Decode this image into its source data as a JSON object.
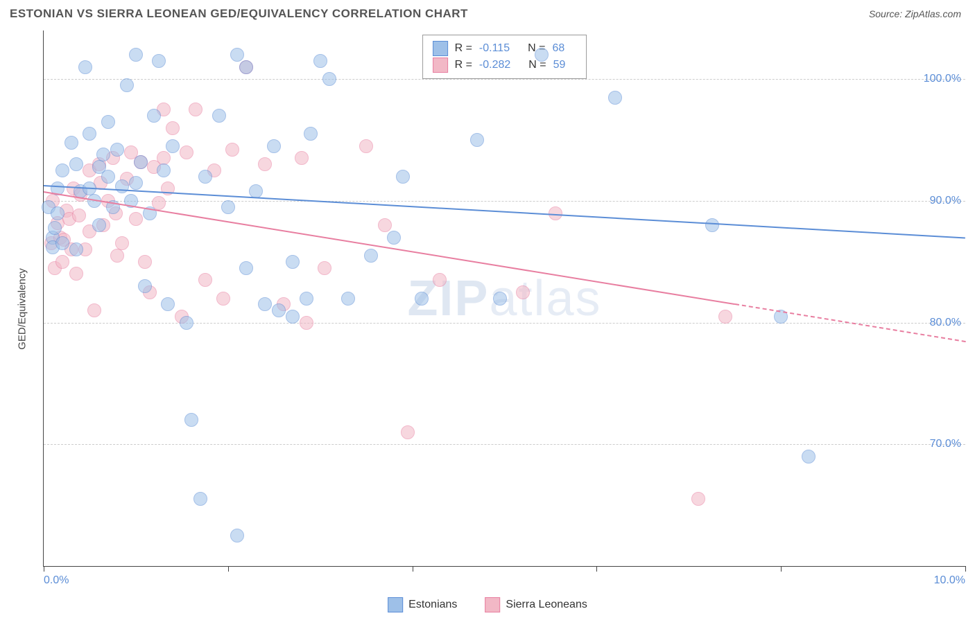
{
  "header": {
    "title": "ESTONIAN VS SIERRA LEONEAN GED/EQUIVALENCY CORRELATION CHART",
    "source": "Source: ZipAtlas.com"
  },
  "watermark": {
    "bold": "ZIP",
    "light": "atlas"
  },
  "chart": {
    "type": "scatter",
    "xlim": [
      0,
      10
    ],
    "ylim": [
      60,
      104
    ],
    "xticks": [
      0,
      2,
      4,
      6,
      8,
      10
    ],
    "xlabels_shown": {
      "0": "0.0%",
      "10": "10.0%"
    },
    "ygrid": [
      70,
      80,
      90,
      100
    ],
    "ylabels": {
      "70": "70.0%",
      "80": "80.0%",
      "90": "90.0%",
      "100": "100.0%"
    },
    "ylabel": "GED/Equivalency",
    "background_color": "#ffffff",
    "grid_color": "#d0d0d0",
    "marker_radius": 10,
    "marker_opacity": 0.55,
    "series": [
      {
        "name": "Estonians",
        "color_fill": "#9ec0e8",
        "color_stroke": "#5b8dd6",
        "R": "-0.115",
        "N": "68",
        "trend": {
          "y_at_x0": 91.3,
          "y_at_x10": 87.0,
          "solid_to_x": 10
        },
        "points": [
          [
            0.05,
            89.5
          ],
          [
            0.1,
            87.0
          ],
          [
            0.1,
            86.2
          ],
          [
            0.12,
            87.8
          ],
          [
            0.15,
            91.0
          ],
          [
            0.15,
            89.0
          ],
          [
            0.2,
            86.5
          ],
          [
            0.2,
            92.5
          ],
          [
            0.3,
            94.8
          ],
          [
            0.35,
            93.0
          ],
          [
            0.35,
            86.0
          ],
          [
            0.4,
            90.8
          ],
          [
            0.45,
            101.0
          ],
          [
            0.5,
            95.5
          ],
          [
            0.5,
            91.0
          ],
          [
            0.55,
            90.0
          ],
          [
            0.6,
            92.8
          ],
          [
            0.6,
            88.0
          ],
          [
            0.65,
            93.8
          ],
          [
            0.7,
            96.5
          ],
          [
            0.7,
            92.0
          ],
          [
            0.75,
            89.5
          ],
          [
            0.8,
            94.2
          ],
          [
            0.85,
            91.2
          ],
          [
            0.9,
            99.5
          ],
          [
            0.95,
            90.0
          ],
          [
            1.0,
            102.0
          ],
          [
            1.0,
            91.5
          ],
          [
            1.05,
            93.2
          ],
          [
            1.1,
            83.0
          ],
          [
            1.15,
            89.0
          ],
          [
            1.2,
            97.0
          ],
          [
            1.25,
            101.5
          ],
          [
            1.3,
            92.5
          ],
          [
            1.35,
            81.5
          ],
          [
            1.4,
            94.5
          ],
          [
            1.55,
            80.0
          ],
          [
            1.6,
            72.0
          ],
          [
            1.7,
            65.5
          ],
          [
            1.75,
            92.0
          ],
          [
            1.9,
            97.0
          ],
          [
            2.0,
            89.5
          ],
          [
            2.1,
            102.0
          ],
          [
            2.1,
            62.5
          ],
          [
            2.2,
            101.0
          ],
          [
            2.2,
            84.5
          ],
          [
            2.3,
            90.8
          ],
          [
            2.4,
            81.5
          ],
          [
            2.5,
            94.5
          ],
          [
            2.55,
            81.0
          ],
          [
            2.7,
            80.5
          ],
          [
            2.7,
            85.0
          ],
          [
            2.85,
            82.0
          ],
          [
            2.9,
            95.5
          ],
          [
            3.0,
            101.5
          ],
          [
            3.1,
            100.0
          ],
          [
            3.3,
            82.0
          ],
          [
            3.55,
            85.5
          ],
          [
            3.8,
            87.0
          ],
          [
            3.9,
            92.0
          ],
          [
            4.1,
            82.0
          ],
          [
            4.7,
            95.0
          ],
          [
            4.95,
            82.0
          ],
          [
            5.4,
            102.0
          ],
          [
            6.2,
            98.5
          ],
          [
            7.25,
            88.0
          ],
          [
            8.0,
            80.5
          ],
          [
            8.3,
            69.0
          ]
        ]
      },
      {
        "name": "Sierra Leoneans",
        "color_fill": "#f2b8c6",
        "color_stroke": "#e87ea0",
        "R": "-0.282",
        "N": "59",
        "trend": {
          "y_at_x0": 90.8,
          "y_at_x10": 78.5,
          "solid_to_x": 7.5
        },
        "points": [
          [
            0.08,
            86.5
          ],
          [
            0.1,
            90.0
          ],
          [
            0.12,
            84.5
          ],
          [
            0.15,
            88.2
          ],
          [
            0.18,
            87.0
          ],
          [
            0.2,
            85.0
          ],
          [
            0.22,
            86.8
          ],
          [
            0.25,
            89.2
          ],
          [
            0.28,
            88.5
          ],
          [
            0.3,
            86.0
          ],
          [
            0.32,
            91.0
          ],
          [
            0.35,
            84.0
          ],
          [
            0.38,
            88.8
          ],
          [
            0.4,
            90.5
          ],
          [
            0.45,
            86.0
          ],
          [
            0.5,
            92.5
          ],
          [
            0.5,
            87.5
          ],
          [
            0.55,
            81.0
          ],
          [
            0.6,
            93.0
          ],
          [
            0.62,
            91.5
          ],
          [
            0.65,
            88.0
          ],
          [
            0.7,
            90.0
          ],
          [
            0.75,
            93.5
          ],
          [
            0.78,
            89.0
          ],
          [
            0.8,
            85.5
          ],
          [
            0.85,
            86.5
          ],
          [
            0.9,
            91.8
          ],
          [
            0.95,
            94.0
          ],
          [
            1.0,
            88.5
          ],
          [
            1.05,
            93.2
          ],
          [
            1.1,
            85.0
          ],
          [
            1.15,
            82.5
          ],
          [
            1.2,
            92.8
          ],
          [
            1.25,
            89.8
          ],
          [
            1.3,
            97.5
          ],
          [
            1.3,
            93.5
          ],
          [
            1.35,
            91.0
          ],
          [
            1.4,
            96.0
          ],
          [
            1.5,
            80.5
          ],
          [
            1.55,
            94.0
          ],
          [
            1.65,
            97.5
          ],
          [
            1.75,
            83.5
          ],
          [
            1.85,
            92.5
          ],
          [
            1.95,
            82.0
          ],
          [
            2.05,
            94.2
          ],
          [
            2.2,
            101.0
          ],
          [
            2.4,
            93.0
          ],
          [
            2.6,
            81.5
          ],
          [
            2.8,
            93.5
          ],
          [
            2.85,
            80.0
          ],
          [
            3.05,
            84.5
          ],
          [
            3.5,
            94.5
          ],
          [
            3.7,
            88.0
          ],
          [
            3.95,
            71.0
          ],
          [
            4.3,
            83.5
          ],
          [
            5.2,
            82.5
          ],
          [
            5.55,
            89.0
          ],
          [
            7.1,
            65.5
          ],
          [
            7.4,
            80.5
          ]
        ]
      }
    ]
  },
  "legend_top": {
    "r_label": "R =",
    "n_label": "N ="
  },
  "legend_bottom": {
    "series1": "Estonians",
    "series2": "Sierra Leoneans"
  }
}
